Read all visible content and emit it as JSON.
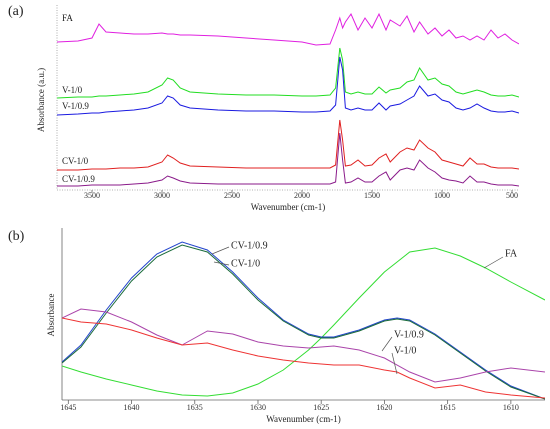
{
  "chart_data": [
    {
      "type": "line",
      "panel_label": "(a)",
      "x_label": "Wavenumber (cm-1)",
      "y_label": "Absorbance (a.u.)",
      "x": [
        3750,
        3600,
        3500,
        3450,
        3400,
        3300,
        3200,
        3100,
        3000,
        2960,
        2920,
        2870,
        2800,
        2600,
        2400,
        2200,
        2000,
        1900,
        1800,
        1760,
        1730,
        1710,
        1690,
        1650,
        1600,
        1550,
        1500,
        1450,
        1400,
        1370,
        1300,
        1250,
        1200,
        1160,
        1100,
        1050,
        1000,
        950,
        900,
        850,
        800,
        750,
        700,
        650,
        600,
        550,
        500,
        450
      ],
      "xlim": [
        3750,
        450
      ],
      "ylim": [
        0,
        185
      ],
      "xticks": [
        3500,
        3000,
        2500,
        2000,
        1500,
        1000,
        500
      ],
      "series": [
        {
          "name": "FA",
          "color": "#e020e0",
          "values": [
            148,
            149,
            152,
            166,
            158,
            157,
            156,
            156,
            157,
            156,
            156,
            155,
            155,
            154,
            152,
            150,
            148,
            145,
            146,
            160,
            172,
            162,
            168,
            176,
            160,
            172,
            162,
            176,
            160,
            170,
            164,
            174,
            158,
            168,
            156,
            162,
            154,
            160,
            152,
            154,
            150,
            154,
            150,
            160,
            152,
            156,
            150,
            146
          ]
        },
        {
          "name": "V-1/0",
          "color": "#22dd22",
          "values": [
            92,
            93,
            93,
            94,
            94,
            95,
            96,
            98,
            105,
            112,
            110,
            102,
            98,
            96,
            95,
            95,
            94,
            94,
            95,
            102,
            142,
            130,
            98,
            96,
            98,
            96,
            96,
            103,
            97,
            100,
            102,
            108,
            110,
            122,
            110,
            112,
            106,
            104,
            98,
            96,
            98,
            100,
            98,
            95,
            94,
            94,
            95,
            93
          ]
        },
        {
          "name": "V-1/0.9",
          "color": "#1a1ae0",
          "values": [
            75,
            76,
            77,
            77,
            78,
            79,
            80,
            82,
            87,
            94,
            92,
            85,
            82,
            80,
            79,
            79,
            78,
            78,
            79,
            85,
            133,
            120,
            82,
            80,
            82,
            80,
            80,
            87,
            80,
            84,
            86,
            90,
            94,
            104,
            94,
            96,
            90,
            88,
            82,
            80,
            82,
            86,
            82,
            79,
            78,
            78,
            79,
            77
          ]
        },
        {
          "name": "CV-1/0",
          "color": "#e02020",
          "values": [
            20,
            20,
            21,
            21,
            21,
            22,
            22,
            23,
            28,
            35,
            32,
            27,
            24,
            23,
            22,
            22,
            22,
            22,
            22,
            25,
            70,
            50,
            24,
            25,
            30,
            24,
            25,
            32,
            36,
            28,
            38,
            42,
            40,
            50,
            42,
            38,
            30,
            28,
            26,
            24,
            32,
            26,
            26,
            23,
            22,
            22,
            22,
            21
          ]
        },
        {
          "name": "CV-1/0.9",
          "color": "#8a1a8a",
          "values": [
            4,
            4,
            5,
            5,
            5,
            5,
            6,
            7,
            10,
            14,
            12,
            9,
            7,
            6,
            6,
            6,
            6,
            6,
            6,
            8,
            57,
            30,
            7,
            8,
            12,
            8,
            8,
            14,
            18,
            10,
            20,
            22,
            20,
            30,
            22,
            18,
            12,
            10,
            9,
            7,
            14,
            8,
            8,
            6,
            5,
            5,
            5,
            4
          ]
        }
      ]
    },
    {
      "type": "line",
      "panel_label": "(b)",
      "x_label": "Wavenumber (cm-1)",
      "y_label": "Absorbance",
      "x": [
        1645.5,
        1644,
        1642,
        1640,
        1638,
        1636,
        1634,
        1632,
        1630,
        1628,
        1626,
        1625,
        1624,
        1622,
        1620,
        1619,
        1618,
        1616,
        1614,
        1612,
        1610,
        1607.3
      ],
      "xlim": [
        1645.5,
        1607.3
      ],
      "ylim": [
        0,
        172
      ],
      "xticks": [
        1645,
        1640,
        1635,
        1630,
        1625,
        1620,
        1615,
        1610
      ],
      "series": [
        {
          "name": "FA",
          "color": "#33dd33",
          "values": [
            34,
            28,
            21,
            15,
            9,
            5,
            4,
            7,
            16,
            30,
            50,
            62,
            75,
            102,
            128,
            138,
            148,
            152,
            144,
            132,
            118,
            100
          ]
        },
        {
          "name": "CV-1/0.9",
          "color": "#2244cc",
          "values": [
            38,
            55,
            90,
            122,
            146,
            158,
            150,
            128,
            102,
            80,
            66,
            63,
            63,
            70,
            80,
            82,
            80,
            66,
            48,
            30,
            14,
            1
          ]
        },
        {
          "name": "CV-1/0",
          "color": "#1a6b3a",
          "values": [
            37,
            53,
            87,
            119,
            143,
            155,
            148,
            126,
            100,
            79,
            65,
            62,
            62,
            69,
            79,
            81,
            79,
            65,
            47,
            29,
            13,
            1
          ]
        },
        {
          "name": "V-1/0.9",
          "color": "#aa44aa",
          "values": [
            82,
            91,
            88,
            78,
            65,
            55,
            69,
            66,
            58,
            54,
            52,
            53,
            54,
            50,
            42,
            35,
            28,
            18,
            22,
            28,
            32,
            28
          ]
        },
        {
          "name": "V-1/0",
          "color": "#ee3333",
          "values": [
            82,
            78,
            76,
            70,
            62,
            55,
            57,
            50,
            44,
            40,
            37,
            36,
            35,
            35,
            30,
            28,
            22,
            12,
            15,
            8,
            5,
            2
          ]
        }
      ]
    }
  ]
}
